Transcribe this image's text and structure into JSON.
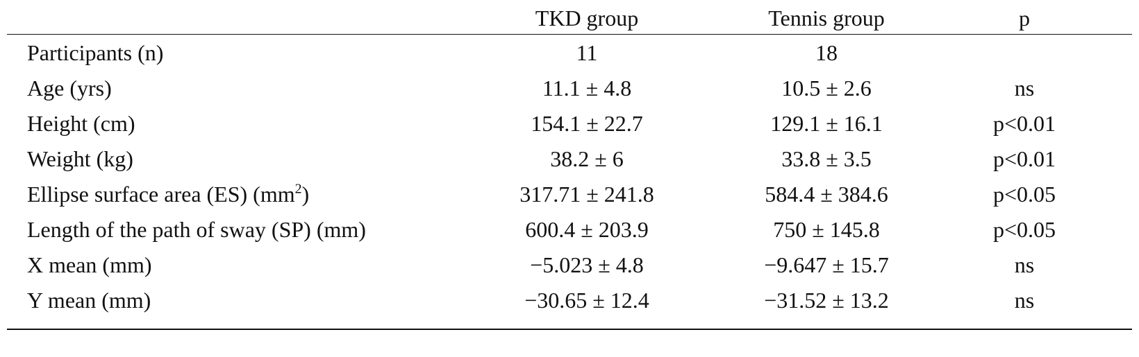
{
  "table": {
    "headers": {
      "label": "",
      "tkd": "TKD group",
      "tennis": "Tennis group",
      "p": "p"
    },
    "rows": [
      {
        "label": "Participants (n)",
        "label_sup": "",
        "label_suffix": "",
        "tkd": "11",
        "tennis": "18",
        "p": ""
      },
      {
        "label": "Age (yrs)",
        "label_sup": "",
        "label_suffix": "",
        "tkd": "11.1 ± 4.8",
        "tennis": "10.5 ± 2.6",
        "p": "ns"
      },
      {
        "label": "Height (cm)",
        "label_sup": "",
        "label_suffix": "",
        "tkd": "154.1 ± 22.7",
        "tennis": "129.1 ± 16.1",
        "p": "p<0.01"
      },
      {
        "label": "Weight (kg)",
        "label_sup": "",
        "label_suffix": "",
        "tkd": "38.2 ± 6",
        "tennis": "33.8 ± 3.5",
        "p": "p<0.01"
      },
      {
        "label": "Ellipse surface area (ES) (mm",
        "label_sup": "2",
        "label_suffix": ")",
        "tkd": "317.71 ± 241.8",
        "tennis": "584.4 ± 384.6",
        "p": "p<0.05"
      },
      {
        "label": "Length of the path of sway (SP) (mm)",
        "label_sup": "",
        "label_suffix": "",
        "tkd": "600.4 ± 203.9",
        "tennis": "750 ± 145.8",
        "p": "p<0.05"
      },
      {
        "label": "X mean (mm)",
        "label_sup": "",
        "label_suffix": "",
        "tkd": "−5.023 ± 4.8",
        "tennis": "−9.647 ± 15.7",
        "p": "ns"
      },
      {
        "label": "Y mean (mm)",
        "label_sup": "",
        "label_suffix": "",
        "tkd": "−30.65 ± 12.4",
        "tennis": "−31.52 ± 13.2",
        "p": "ns"
      }
    ]
  }
}
